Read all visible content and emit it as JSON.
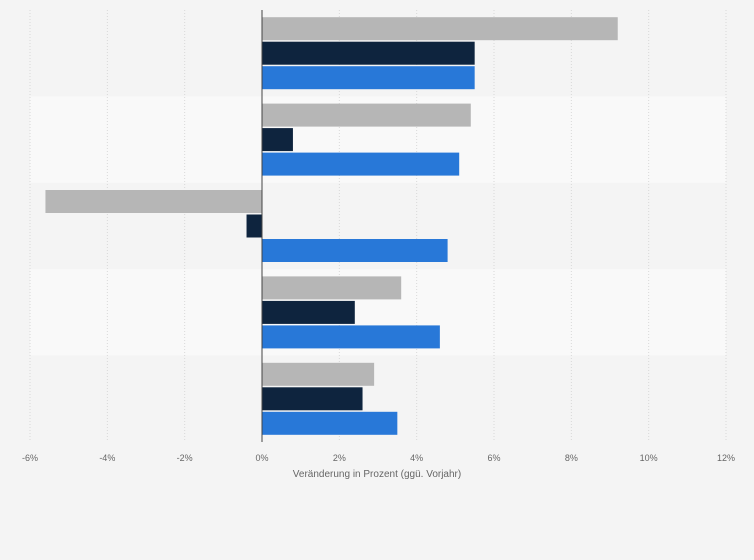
{
  "chart_data": {
    "type": "bar",
    "orientation": "horizontal",
    "categories": [
      "",
      "",
      "",
      "",
      ""
    ],
    "series": [
      {
        "color": "#b6b6b6",
        "values": [
          9.2,
          5.4,
          -5.6,
          3.6,
          2.9
        ]
      },
      {
        "color": "#0e243e",
        "values": [
          5.5,
          0.8,
          -0.4,
          2.4,
          2.6
        ]
      },
      {
        "color": "#2878d8",
        "values": [
          5.5,
          5.1,
          4.8,
          4.6,
          3.5
        ]
      }
    ],
    "xlabel": "Veränderung in Prozent (ggü. Vorjahr)",
    "ylabel": "",
    "title": "",
    "xlim": [
      -6,
      12
    ],
    "xticks": [
      -6,
      -4,
      -2,
      0,
      2,
      4,
      6,
      8,
      10,
      12
    ],
    "xtick_labels": [
      "-6%",
      "-4%",
      "-2%",
      "0%",
      "2%",
      "4%",
      "6%",
      "8%",
      "10%",
      "12%"
    ],
    "grid": true,
    "legend": "none"
  }
}
